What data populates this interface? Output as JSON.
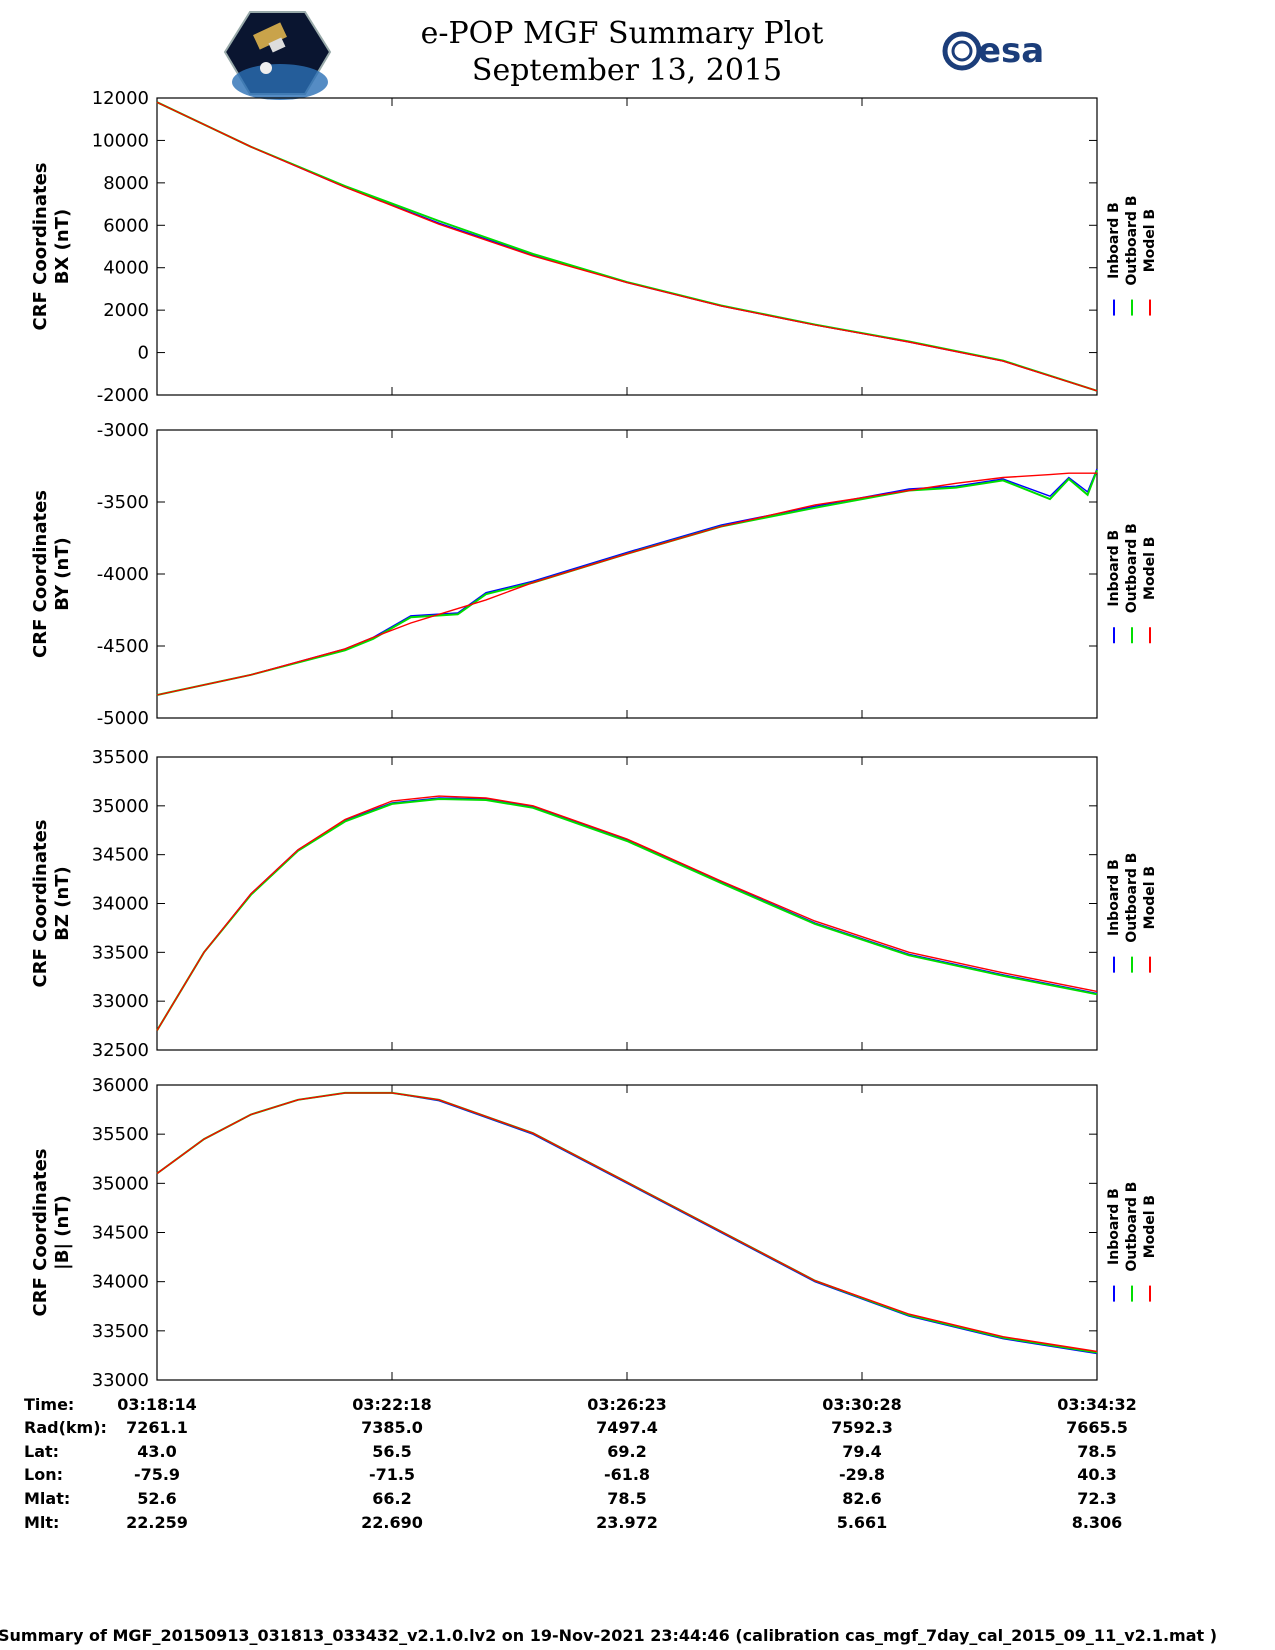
{
  "header": {
    "title_line1": "e-POP MGF Summary Plot",
    "title_line2": "September 13, 2015",
    "esa_logo_text": "esa"
  },
  "colors": {
    "inboard": "#0000ff",
    "outboard": "#00dd00",
    "model": "#ff0000"
  },
  "legend": [
    "Inboard B",
    "Outboard B",
    "Model B"
  ],
  "x_ticks": [
    "03:18:14",
    "03:22:18",
    "03:26:23",
    "03:30:28",
    "03:34:32"
  ],
  "chart_data": [
    {
      "type": "line",
      "ylabel_line1": "CRF Coordinates",
      "ylabel_line2": "BX (nT)",
      "ylim": [
        -2000,
        12000
      ],
      "yticks": [
        12000,
        10000,
        8000,
        6000,
        4000,
        2000,
        0,
        -2000
      ],
      "x": [
        0,
        0.1,
        0.2,
        0.3,
        0.4,
        0.5,
        0.6,
        0.7,
        0.8,
        0.9,
        1.0
      ],
      "series": [
        {
          "name": "Inboard B",
          "values": [
            11800,
            9700,
            7800,
            6100,
            4600,
            3300,
            2200,
            1300,
            500,
            -400,
            -1800
          ]
        },
        {
          "name": "Outboard B",
          "values": [
            11800,
            9700,
            7850,
            6200,
            4650,
            3320,
            2220,
            1320,
            520,
            -380,
            -1800
          ]
        },
        {
          "name": "Model B",
          "values": [
            11800,
            9700,
            7800,
            6050,
            4550,
            3300,
            2200,
            1300,
            500,
            -400,
            -1800
          ]
        }
      ]
    },
    {
      "type": "line",
      "ylabel_line1": "CRF Coordinates",
      "ylabel_line2": "BY (nT)",
      "ylim": [
        -5000,
        -3000
      ],
      "yticks": [
        -3000,
        -3500,
        -4000,
        -4500,
        -5000
      ],
      "x": [
        0,
        0.1,
        0.2,
        0.23,
        0.27,
        0.32,
        0.35,
        0.4,
        0.5,
        0.6,
        0.7,
        0.8,
        0.85,
        0.9,
        0.95,
        0.97,
        0.99,
        1.0
      ],
      "series": [
        {
          "name": "Inboard B",
          "values": [
            -4840,
            -4700,
            -4520,
            -4440,
            -4290,
            -4270,
            -4130,
            -4050,
            -3850,
            -3660,
            -3530,
            -3410,
            -3390,
            -3340,
            -3460,
            -3330,
            -3430,
            -3270
          ]
        },
        {
          "name": "Outboard B",
          "values": [
            -4840,
            -4700,
            -4530,
            -4450,
            -4300,
            -4280,
            -4140,
            -4060,
            -3860,
            -3670,
            -3540,
            -3420,
            -3400,
            -3350,
            -3480,
            -3340,
            -3450,
            -3280
          ]
        },
        {
          "name": "Model B",
          "values": [
            -4840,
            -4700,
            -4520,
            -4440,
            -4340,
            -4240,
            -4180,
            -4060,
            -3860,
            -3670,
            -3520,
            -3420,
            -3370,
            -3330,
            -3310,
            -3300,
            -3300,
            -3300
          ]
        }
      ]
    },
    {
      "type": "line",
      "ylabel_line1": "CRF Coordinates",
      "ylabel_line2": "BZ (nT)",
      "ylim": [
        32500,
        35500
      ],
      "yticks": [
        35500,
        35000,
        34500,
        34000,
        33500,
        33000,
        32500
      ],
      "x": [
        0,
        0.05,
        0.1,
        0.15,
        0.2,
        0.25,
        0.3,
        0.35,
        0.4,
        0.5,
        0.6,
        0.7,
        0.8,
        0.9,
        1.0
      ],
      "series": [
        {
          "name": "Inboard B",
          "values": [
            32700,
            33500,
            34100,
            34550,
            34850,
            35030,
            35080,
            35070,
            34990,
            34650,
            34220,
            33800,
            33480,
            33270,
            33080
          ]
        },
        {
          "name": "Outboard B",
          "values": [
            32700,
            33500,
            34090,
            34540,
            34840,
            35020,
            35070,
            35060,
            34980,
            34640,
            34210,
            33790,
            33470,
            33260,
            33070
          ]
        },
        {
          "name": "Model B",
          "values": [
            32700,
            33500,
            34100,
            34550,
            34860,
            35050,
            35100,
            35080,
            35000,
            34660,
            34230,
            33820,
            33500,
            33290,
            33100
          ]
        }
      ]
    },
    {
      "type": "line",
      "ylabel_line1": "CRF Coordinates",
      "ylabel_line2": "|B| (nT)",
      "ylim": [
        33000,
        36000
      ],
      "yticks": [
        36000,
        35500,
        35000,
        34500,
        34000,
        33500,
        33000
      ],
      "x": [
        0,
        0.05,
        0.1,
        0.15,
        0.2,
        0.25,
        0.3,
        0.4,
        0.5,
        0.6,
        0.7,
        0.8,
        0.9,
        1.0
      ],
      "series": [
        {
          "name": "Inboard B",
          "values": [
            35100,
            35450,
            35700,
            35850,
            35920,
            35920,
            35840,
            35500,
            35000,
            34500,
            34000,
            33650,
            33420,
            33270
          ]
        },
        {
          "name": "Outboard B",
          "values": [
            35100,
            35450,
            35700,
            35850,
            35920,
            35920,
            35850,
            35510,
            35010,
            34510,
            34010,
            33660,
            33430,
            33280
          ]
        },
        {
          "name": "Model B",
          "values": [
            35100,
            35450,
            35700,
            35850,
            35920,
            35920,
            35850,
            35510,
            35010,
            34510,
            34010,
            33670,
            33440,
            33290
          ]
        }
      ]
    }
  ],
  "orbit_table": {
    "rows": [
      {
        "label": "Time:",
        "values": [
          "03:18:14",
          "03:22:18",
          "03:26:23",
          "03:30:28",
          "03:34:32"
        ]
      },
      {
        "label": "Rad(km):",
        "values": [
          "7261.1",
          "7385.0",
          "7497.4",
          "7592.3",
          "7665.5"
        ]
      },
      {
        "label": "Lat:",
        "values": [
          "43.0",
          "56.5",
          "69.2",
          "79.4",
          "78.5"
        ]
      },
      {
        "label": "Lon:",
        "values": [
          "-75.9",
          "-71.5",
          "-61.8",
          "-29.8",
          "40.3"
        ]
      },
      {
        "label": "Mlat:",
        "values": [
          "52.6",
          "66.2",
          "78.5",
          "82.6",
          "72.3"
        ]
      },
      {
        "label": "Mlt:",
        "values": [
          "22.259",
          "22.690",
          "23.972",
          "5.661",
          "8.306"
        ]
      }
    ]
  },
  "footer": "Summary of MGF_20150913_031813_033432_v2.1.0.lv2 on 19-Nov-2021 23:44:46 (calibration cas_mgf_7day_cal_2015_09_11_v2.1.mat )"
}
